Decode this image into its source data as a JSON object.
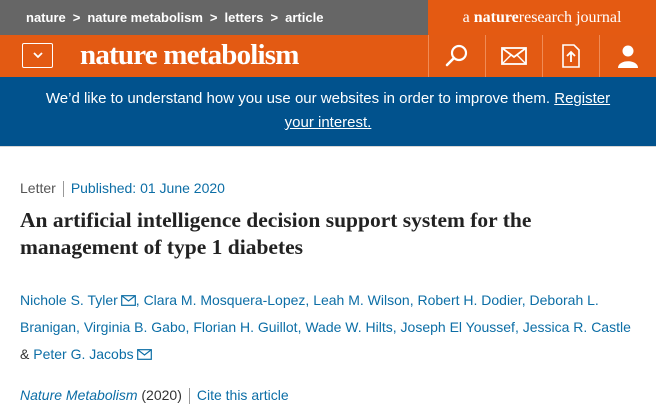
{
  "breadcrumb": [
    {
      "label": "nature"
    },
    {
      "label": "nature metabolism"
    },
    {
      "label": "letters"
    },
    {
      "label": "article"
    }
  ],
  "journal_tag": {
    "prefix": "a ",
    "brand": "nature",
    "middle": "research",
    "suffix": " journal"
  },
  "header": {
    "logo": "nature metabolism",
    "icons": [
      "search-icon",
      "mail-icon",
      "download-pdf-icon",
      "user-icon"
    ]
  },
  "banner": {
    "text": "We’d like to understand how you use our websites in order to improve them.",
    "link_line1": "Register",
    "link_line2": "your interest."
  },
  "article": {
    "type": "Letter",
    "published": "Published: 01 June 2020",
    "title": "An artificial intelligence decision support system for the management of type 1 diabetes",
    "authors": [
      "Nichole S. Tyler",
      "Clara M. Mosquera-Lopez",
      "Leah M. Wilson",
      "Robert H. Dodier",
      "Deborah L. Branigan",
      "Virginia B. Gabo",
      "Florian H. Guillot",
      "Wade W. Hilts",
      "Joseph El Youssef",
      "Jessica R. Castle",
      "Peter G. Jacobs"
    ],
    "journal": "Nature Metabolism",
    "year": "(2020)",
    "cite": "Cite this article"
  },
  "colors": {
    "orange": "#e35a13",
    "grey": "#666666",
    "blue": "#01528d",
    "link": "#0c6ea6"
  }
}
